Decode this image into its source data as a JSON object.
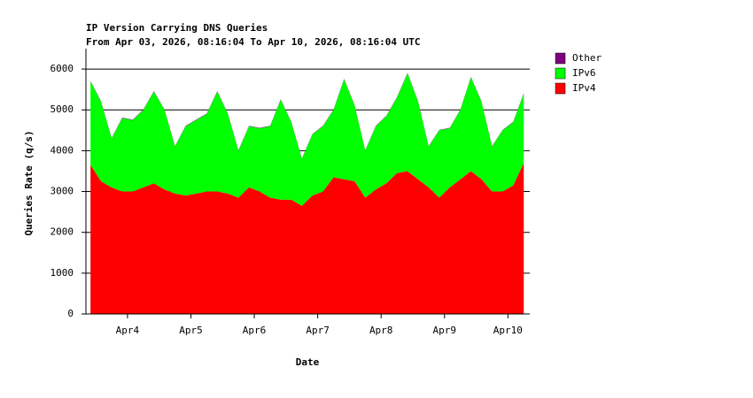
{
  "chart_data": {
    "type": "stacked_area",
    "title": "IP Version Carrying DNS Queries",
    "subtitle": "From Apr 03, 2026, 08:16:04 To Apr 10, 2026, 08:16:04 UTC",
    "x_label": "Date",
    "y_label": "Queries Rate (q/s)",
    "x": [
      "2026-04-03T10:00",
      "2026-04-03T14:00",
      "2026-04-03T18:00",
      "2026-04-03T22:00",
      "2026-04-04T02:00",
      "2026-04-04T06:00",
      "2026-04-04T10:00",
      "2026-04-04T14:00",
      "2026-04-04T18:00",
      "2026-04-04T22:00",
      "2026-04-05T02:00",
      "2026-04-05T06:00",
      "2026-04-05T10:00",
      "2026-04-05T14:00",
      "2026-04-05T18:00",
      "2026-04-05T22:00",
      "2026-04-06T02:00",
      "2026-04-06T06:00",
      "2026-04-06T10:00",
      "2026-04-06T14:00",
      "2026-04-06T18:00",
      "2026-04-06T22:00",
      "2026-04-07T02:00",
      "2026-04-07T06:00",
      "2026-04-07T10:00",
      "2026-04-07T14:00",
      "2026-04-07T18:00",
      "2026-04-07T22:00",
      "2026-04-08T02:00",
      "2026-04-08T06:00",
      "2026-04-08T10:00",
      "2026-04-08T14:00",
      "2026-04-08T18:00",
      "2026-04-08T22:00",
      "2026-04-09T02:00",
      "2026-04-09T06:00",
      "2026-04-09T10:00",
      "2026-04-09T14:00",
      "2026-04-09T18:00",
      "2026-04-09T22:00",
      "2026-04-10T02:00",
      "2026-04-10T06:00"
    ],
    "series": [
      {
        "name": "IPv4",
        "color": "#ff0000",
        "values": [
          3650,
          3250,
          3100,
          3000,
          3000,
          3100,
          3200,
          3050,
          2950,
          2900,
          2950,
          3000,
          3000,
          2950,
          2850,
          3100,
          3000,
          2850,
          2800,
          2800,
          2650,
          2900,
          3000,
          3350,
          3300,
          3250,
          2850,
          3050,
          3200,
          3450,
          3500,
          3300,
          3100,
          2850,
          3100,
          3300,
          3500,
          3300,
          3000,
          3000,
          3150,
          3700
        ]
      },
      {
        "name": "IPv6",
        "color": "#00ff00",
        "values": [
          2050,
          1950,
          1200,
          1800,
          1750,
          1900,
          2250,
          1950,
          1150,
          1700,
          1800,
          1900,
          2450,
          1950,
          1150,
          1500,
          1550,
          1750,
          2450,
          1900,
          1150,
          1500,
          1600,
          1650,
          2450,
          1850,
          1150,
          1550,
          1650,
          1850,
          2400,
          1900,
          1000,
          1650,
          1450,
          1700,
          2300,
          1900,
          1100,
          1500,
          1550,
          1700
        ]
      },
      {
        "name": "Other",
        "color": "#800080",
        "values": [
          10,
          10,
          10,
          10,
          10,
          10,
          10,
          10,
          10,
          10,
          10,
          10,
          10,
          10,
          10,
          10,
          10,
          10,
          10,
          10,
          10,
          10,
          10,
          10,
          10,
          10,
          10,
          10,
          10,
          10,
          10,
          10,
          10,
          10,
          10,
          10,
          10,
          10,
          10,
          10,
          10,
          10
        ]
      }
    ],
    "xlim": [
      "2026-04-03T08:16:04",
      "2026-04-10T08:16:04"
    ],
    "xticks": [
      {
        "value": "2026-04-04T00:00",
        "label": "Apr4"
      },
      {
        "value": "2026-04-05T00:00",
        "label": "Apr5"
      },
      {
        "value": "2026-04-06T00:00",
        "label": "Apr6"
      },
      {
        "value": "2026-04-07T00:00",
        "label": "Apr7"
      },
      {
        "value": "2026-04-08T00:00",
        "label": "Apr8"
      },
      {
        "value": "2026-04-09T00:00",
        "label": "Apr9"
      },
      {
        "value": "2026-04-10T00:00",
        "label": "Apr10"
      }
    ],
    "ylim": [
      0,
      6500
    ],
    "yticks": [
      0,
      1000,
      2000,
      3000,
      4000,
      5000,
      6000
    ],
    "grid": true,
    "legend": "right"
  }
}
